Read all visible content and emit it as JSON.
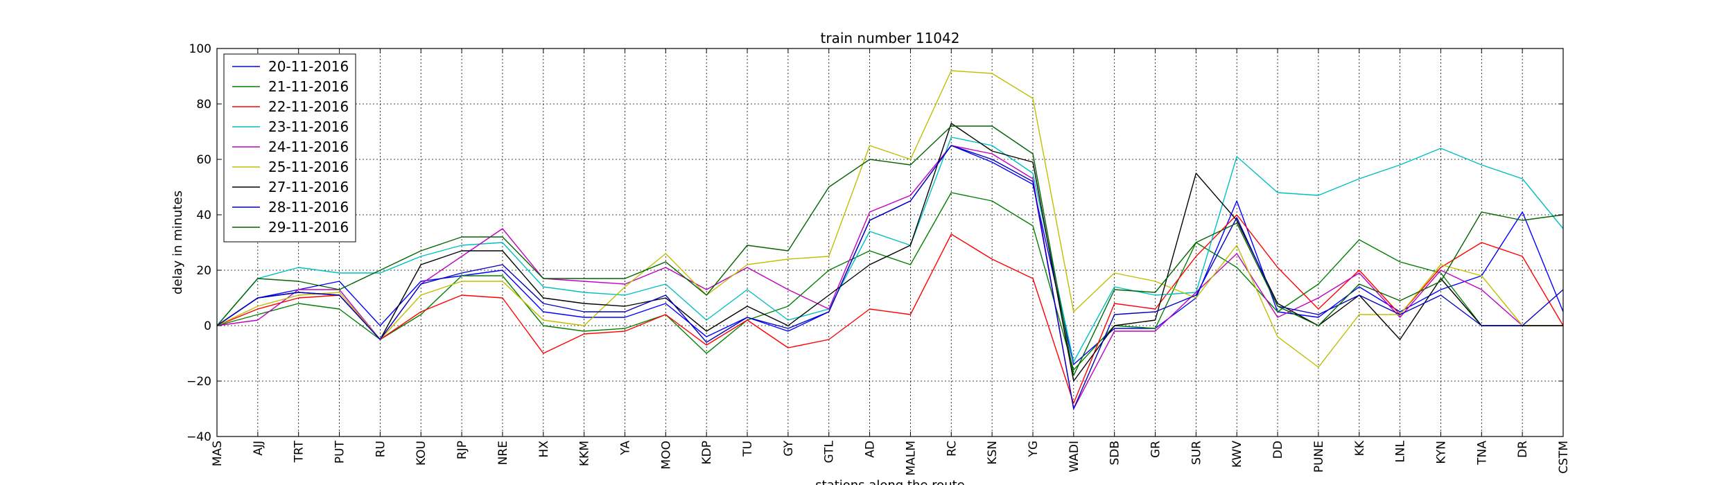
{
  "chart_data": {
    "type": "line",
    "title": "train number 11042",
    "xlabel": "stations along the route",
    "ylabel": "delay in minutes",
    "ylim": [
      -40,
      100
    ],
    "yticks": [
      -40,
      -20,
      0,
      20,
      40,
      60,
      80,
      100
    ],
    "grid": true,
    "legend_placement": "top-left",
    "categories": [
      "MAS",
      "AJJ",
      "TRT",
      "PUT",
      "RU",
      "KOU",
      "RJP",
      "NRE",
      "HX",
      "KKM",
      "YA",
      "MOO",
      "KDP",
      "TU",
      "GY",
      "GTL",
      "AD",
      "MALM",
      "RC",
      "KSN",
      "YG",
      "WADI",
      "SDB",
      "GR",
      "SUR",
      "KWV",
      "DD",
      "PUNE",
      "KK",
      "LNL",
      "KYN",
      "TNA",
      "DR",
      "CSTM"
    ],
    "series": [
      {
        "name": "20-11-2016",
        "color": "#0000ff",
        "values": [
          0,
          10,
          13,
          16,
          0,
          16,
          18,
          20,
          5,
          3,
          3,
          8,
          -4,
          3,
          -2,
          5,
          38,
          45,
          65,
          59,
          51,
          -14,
          -1,
          -1,
          10,
          45,
          5,
          3,
          14,
          5,
          13,
          18,
          41,
          5
        ]
      },
      {
        "name": "21-11-2016",
        "color": "#008000",
        "values": [
          0,
          4,
          8,
          6,
          -5,
          4,
          18,
          18,
          0,
          -2,
          -1,
          4,
          -10,
          2,
          7,
          20,
          27,
          22,
          48,
          45,
          36,
          -16,
          0,
          -1,
          30,
          21,
          5,
          15,
          31,
          23,
          19,
          0,
          0,
          0
        ]
      },
      {
        "name": "22-11-2016",
        "color": "#ff0000",
        "values": [
          0,
          6,
          10,
          11,
          -5,
          5,
          11,
          10,
          -10,
          -3,
          -2,
          4,
          -7,
          2,
          -8,
          -5,
          6,
          4,
          33,
          24,
          17,
          -28,
          8,
          6,
          25,
          40,
          21,
          6,
          20,
          4,
          21,
          30,
          25,
          0
        ]
      },
      {
        "name": "23-11-2016",
        "color": "#00bfbf",
        "values": [
          0,
          17,
          21,
          19,
          19,
          25,
          29,
          30,
          14,
          12,
          11,
          15,
          2,
          13,
          2,
          6,
          34,
          29,
          68,
          65,
          55,
          -13,
          14,
          11,
          12,
          61,
          48,
          47,
          53,
          58,
          64,
          58,
          53,
          35
        ]
      },
      {
        "name": "24-11-2016",
        "color": "#bf00bf",
        "values": [
          0,
          2,
          13,
          13,
          -5,
          15,
          25,
          35,
          17,
          16,
          15,
          21,
          13,
          21,
          13,
          6,
          41,
          47,
          65,
          62,
          53,
          -30,
          -2,
          -2,
          12,
          26,
          3,
          10,
          19,
          3,
          20,
          13,
          0,
          0
        ]
      },
      {
        "name": "25-11-2016",
        "color": "#bfbf00",
        "values": [
          0,
          7,
          11,
          12,
          -5,
          11,
          16,
          16,
          2,
          0,
          14,
          26,
          11,
          22,
          24,
          25,
          65,
          60,
          92,
          91,
          82,
          5,
          19,
          16,
          10,
          29,
          -4,
          -15,
          4,
          4,
          22,
          18,
          0,
          0
        ]
      },
      {
        "name": "27-11-2016",
        "color": "#000000",
        "values": [
          0,
          10,
          12,
          11,
          -5,
          22,
          27,
          27,
          10,
          8,
          7,
          10,
          -2,
          7,
          0,
          11,
          22,
          29,
          73,
          63,
          59,
          -20,
          0,
          2,
          55,
          38,
          8,
          0,
          11,
          -5,
          17,
          0,
          0,
          0
        ]
      },
      {
        "name": "28-11-2016",
        "color": "#0000bf",
        "values": [
          0,
          10,
          12,
          11,
          -5,
          15,
          19,
          22,
          8,
          5,
          5,
          11,
          -6,
          3,
          -1,
          5,
          38,
          45,
          65,
          60,
          52,
          -30,
          4,
          5,
          11,
          39,
          7,
          4,
          11,
          4,
          11,
          0,
          0,
          13
        ]
      },
      {
        "name": "29-11-2016",
        "color": "#006400",
        "values": [
          0,
          17,
          16,
          13,
          20,
          27,
          32,
          32,
          17,
          17,
          17,
          23,
          11,
          29,
          27,
          50,
          60,
          58,
          72,
          72,
          62,
          -18,
          13,
          12,
          30,
          37,
          7,
          0,
          15,
          9,
          16,
          41,
          38,
          40
        ]
      }
    ]
  }
}
